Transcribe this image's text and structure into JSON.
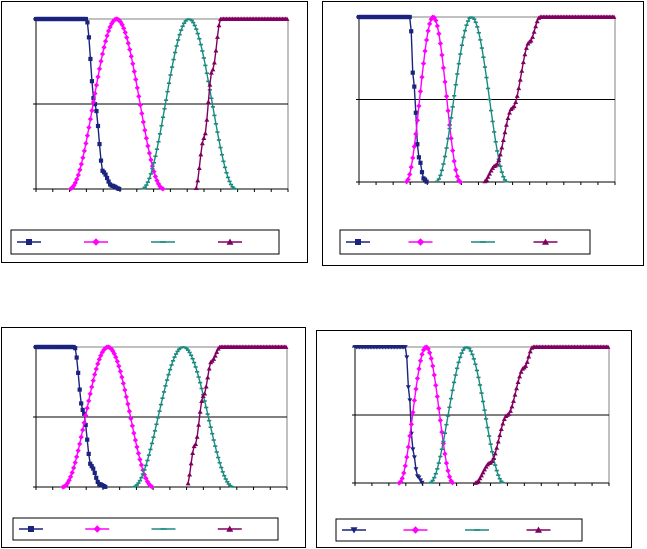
{
  "colors": {
    "series_1": "#1a237e",
    "series_2": "#ff00ff",
    "series_3": "#1a8a80",
    "series_4": "#800060",
    "axis": "#000000",
    "frame": "#808080"
  },
  "chart_data": [
    {
      "type": "line",
      "title": "",
      "xlim": [
        0,
        15
      ],
      "ylim": [
        0,
        1
      ],
      "grid": "horizontal-midline",
      "legend_placement": "bottom",
      "series": [
        {
          "shape": "decreasing-sigmoid",
          "marker": "square",
          "color": "#1a237e",
          "x": [
            0,
            1,
            2,
            3,
            3.5,
            4,
            4.5,
            5
          ],
          "values": [
            1,
            1,
            1,
            1,
            0.5,
            0.1,
            0.02,
            0
          ]
        },
        {
          "shape": "bell",
          "marker": "diamond",
          "color": "#ff00ff",
          "center": 4.8,
          "half_width": 2.8,
          "x": [
            2,
            3,
            4,
            4.8,
            5.6,
            6.6,
            7.6
          ],
          "values": [
            0,
            0.42,
            0.92,
            1,
            0.92,
            0.42,
            0
          ]
        },
        {
          "shape": "bell",
          "marker": "dash",
          "color": "#1a8a80",
          "center": 9.1,
          "half_width": 2.8,
          "x": [
            6.3,
            7.3,
            8.3,
            9.1,
            9.9,
            10.9,
            11.9
          ],
          "values": [
            0,
            0.42,
            0.92,
            1,
            0.92,
            0.42,
            0
          ]
        },
        {
          "shape": "increasing-sigmoid",
          "marker": "triangle",
          "color": "#800060",
          "x": [
            9.5,
            10,
            10.5,
            11,
            12,
            13,
            14
          ],
          "values": [
            0,
            0.3,
            0.7,
            1,
            1,
            1,
            1
          ]
        }
      ]
    },
    {
      "type": "line",
      "title": "",
      "xlim": [
        0,
        15
      ],
      "ylim": [
        0,
        1
      ],
      "grid": "horizontal-midline",
      "legend_placement": "bottom",
      "series": [
        {
          "shape": "decreasing-sigmoid",
          "marker": "square",
          "color": "#1a237e",
          "x": [
            0,
            1,
            2,
            3,
            3.2,
            3.5,
            3.8,
            4
          ],
          "values": [
            1,
            1,
            1,
            1,
            0.6,
            0.15,
            0.02,
            0
          ]
        },
        {
          "shape": "bell",
          "marker": "diamond",
          "color": "#ff00ff",
          "center": 4.35,
          "half_width": 1.6,
          "x": [
            2.75,
            3.35,
            3.95,
            4.35,
            4.75,
            5.35,
            5.95
          ],
          "values": [
            0,
            0.42,
            0.92,
            1,
            0.92,
            0.42,
            0
          ]
        },
        {
          "shape": "bell",
          "marker": "dash",
          "color": "#1a8a80",
          "center": 6.6,
          "half_width": 2.1,
          "x": [
            4.5,
            5.3,
            6.0,
            6.6,
            7.2,
            7.9,
            8.7
          ],
          "values": [
            0,
            0.42,
            0.92,
            1,
            0.92,
            0.42,
            0
          ]
        },
        {
          "shape": "increasing-sigmoid",
          "marker": "triangle",
          "color": "#800060",
          "x": [
            7.3,
            8,
            9,
            10,
            10.6,
            12,
            13
          ],
          "values": [
            0,
            0.1,
            0.45,
            0.85,
            1,
            1,
            1
          ]
        }
      ]
    },
    {
      "type": "line",
      "title": "",
      "xlim": [
        0,
        15
      ],
      "ylim": [
        0,
        1
      ],
      "grid": "horizontal-midline",
      "legend_placement": "bottom",
      "series": [
        {
          "shape": "decreasing-sigmoid",
          "marker": "square",
          "color": "#1a237e",
          "x": [
            0,
            1,
            2,
            2.3,
            2.8,
            3.3,
            3.8,
            4.2
          ],
          "values": [
            1,
            1,
            1,
            1,
            0.55,
            0.15,
            0.02,
            0
          ]
        },
        {
          "shape": "bell",
          "marker": "diamond",
          "color": "#ff00ff",
          "center": 4.3,
          "half_width": 2.7,
          "x": [
            1.6,
            2.6,
            3.5,
            4.3,
            5.1,
            6.0,
            7.0
          ],
          "values": [
            0,
            0.42,
            0.92,
            1,
            0.92,
            0.42,
            0
          ]
        },
        {
          "shape": "bell",
          "marker": "dash",
          "color": "#1a8a80",
          "center": 8.8,
          "half_width": 3.0,
          "x": [
            5.8,
            6.9,
            8.0,
            8.8,
            9.6,
            10.7,
            11.8
          ],
          "values": [
            0,
            0.42,
            0.92,
            1,
            0.92,
            0.42,
            0
          ]
        },
        {
          "shape": "increasing-sigmoid",
          "marker": "triangle",
          "color": "#800060",
          "x": [
            9,
            9.5,
            10,
            10.5,
            11,
            12,
            14
          ],
          "values": [
            0,
            0.3,
            0.65,
            0.9,
            1,
            1,
            1
          ]
        }
      ]
    },
    {
      "type": "line",
      "title": "",
      "xlim": [
        0,
        15
      ],
      "ylim": [
        0,
        1
      ],
      "grid": "horizontal-midline",
      "legend_placement": "bottom",
      "series": [
        {
          "shape": "decreasing-sigmoid",
          "marker": "inverted-triangle",
          "color": "#1a237e",
          "x": [
            0,
            1,
            2,
            3,
            3.2,
            3.4,
            3.7,
            4
          ],
          "values": [
            1,
            1,
            1,
            1,
            0.65,
            0.25,
            0.05,
            0
          ]
        },
        {
          "shape": "bell",
          "marker": "diamond",
          "color": "#ff00ff",
          "center": 4.2,
          "half_width": 1.6,
          "x": [
            2.6,
            3.2,
            3.8,
            4.2,
            4.6,
            5.2,
            5.8
          ],
          "values": [
            0,
            0.42,
            0.92,
            1,
            0.92,
            0.42,
            0
          ]
        },
        {
          "shape": "bell",
          "marker": "dash",
          "color": "#1a8a80",
          "center": 6.6,
          "half_width": 2.2,
          "x": [
            4.4,
            5.2,
            6.0,
            6.6,
            7.2,
            8.0,
            8.8
          ],
          "values": [
            0,
            0.42,
            0.92,
            1,
            0.92,
            0.42,
            0
          ]
        },
        {
          "shape": "increasing-sigmoid",
          "marker": "triangle",
          "color": "#800060",
          "x": [
            7.1,
            8,
            9,
            10,
            10.5,
            11.5,
            12.5
          ],
          "values": [
            0,
            0.15,
            0.5,
            0.85,
            1,
            1,
            1
          ]
        }
      ]
    }
  ]
}
